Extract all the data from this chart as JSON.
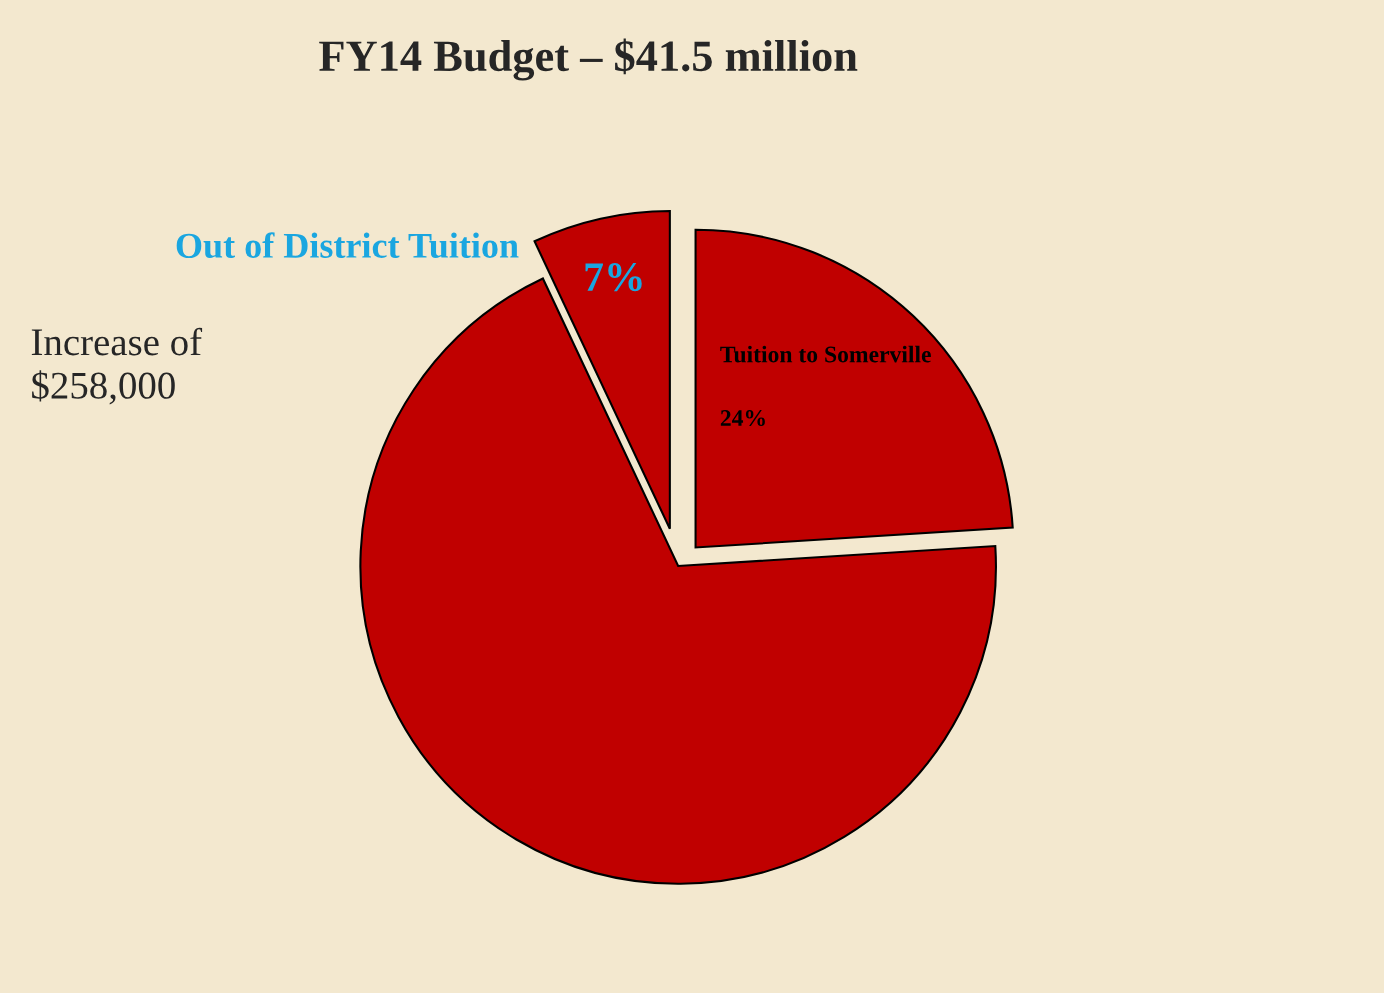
{
  "chart_data": {
    "type": "pie",
    "title": "FY14 Budget – $41.5 million",
    "categories": [
      "Out of District Tuition",
      null,
      "Tuition to Somerville"
    ],
    "values": [
      7,
      69,
      24
    ],
    "colors": [
      "#c00000",
      "#c00000",
      "#c00000"
    ],
    "value_labels": [
      "7%",
      null,
      "24%"
    ],
    "annotations": [
      "Increase of\n$258,000"
    ],
    "legend": false
  }
}
